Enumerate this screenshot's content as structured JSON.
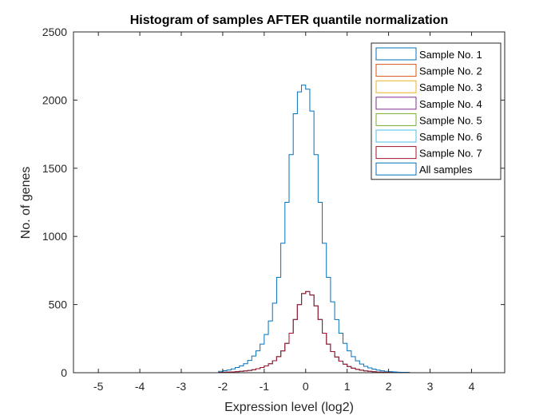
{
  "chart_data": {
    "type": "area",
    "title": "Histogram of samples AFTER quantile normalization",
    "xlabel": "Expression level (log2)",
    "ylabel": "No. of genes",
    "xlim": [
      -5.6,
      4.8
    ],
    "ylim": [
      0,
      2500
    ],
    "xticks": [
      -5,
      -4,
      -3,
      -2,
      -1,
      0,
      1,
      2,
      3,
      4
    ],
    "yticks": [
      0,
      500,
      1000,
      1500,
      2000,
      2500
    ],
    "grid": false,
    "legend_position": "top-right",
    "bin_width": 0.1,
    "bin_centers": [
      -2.05,
      -1.95,
      -1.85,
      -1.75,
      -1.65,
      -1.55,
      -1.45,
      -1.35,
      -1.25,
      -1.15,
      -1.05,
      -0.95,
      -0.85,
      -0.75,
      -0.65,
      -0.55,
      -0.45,
      -0.35,
      -0.25,
      -0.15,
      -0.05,
      0.05,
      0.15,
      0.25,
      0.35,
      0.45,
      0.55,
      0.65,
      0.75,
      0.85,
      0.95,
      1.05,
      1.15,
      1.25,
      1.35,
      1.45,
      1.55,
      1.65,
      1.75,
      1.85,
      1.95,
      2.05,
      2.15,
      2.25,
      2.35,
      2.45
    ],
    "series": [
      {
        "name": "Sample No. 1",
        "color": "#0072bd",
        "values": [
          3,
          4,
          5,
          6,
          8,
          10,
          13,
          17,
          22,
          29,
          38,
          50,
          66,
          88,
          118,
          160,
          215,
          290,
          390,
          500,
          580,
          595,
          570,
          490,
          390,
          290,
          210,
          155,
          115,
          85,
          62,
          45,
          33,
          24,
          18,
          13,
          10,
          7,
          5,
          4,
          3,
          2,
          2,
          1,
          1,
          1
        ]
      },
      {
        "name": "Sample No. 2",
        "color": "#d95319",
        "values": [
          3,
          4,
          5,
          6,
          8,
          10,
          13,
          17,
          22,
          29,
          38,
          50,
          66,
          88,
          118,
          160,
          215,
          290,
          390,
          500,
          580,
          595,
          570,
          490,
          390,
          290,
          210,
          155,
          115,
          85,
          62,
          45,
          33,
          24,
          18,
          13,
          10,
          7,
          5,
          4,
          3,
          2,
          2,
          1,
          1,
          1
        ]
      },
      {
        "name": "Sample No. 3",
        "color": "#edb120",
        "values": [
          3,
          4,
          5,
          6,
          8,
          10,
          13,
          17,
          22,
          29,
          38,
          50,
          66,
          88,
          118,
          160,
          215,
          290,
          390,
          500,
          580,
          595,
          570,
          490,
          390,
          290,
          210,
          155,
          115,
          85,
          62,
          45,
          33,
          24,
          18,
          13,
          10,
          7,
          5,
          4,
          3,
          2,
          2,
          1,
          1,
          1
        ]
      },
      {
        "name": "Sample No. 4",
        "color": "#7e2f8e",
        "values": [
          3,
          4,
          5,
          6,
          8,
          10,
          13,
          17,
          22,
          29,
          38,
          50,
          66,
          88,
          118,
          160,
          215,
          290,
          390,
          500,
          580,
          595,
          570,
          490,
          390,
          290,
          210,
          155,
          115,
          85,
          62,
          45,
          33,
          24,
          18,
          13,
          10,
          7,
          5,
          4,
          3,
          2,
          2,
          1,
          1,
          1
        ]
      },
      {
        "name": "Sample No. 5",
        "color": "#77ac30",
        "values": [
          3,
          4,
          5,
          6,
          8,
          10,
          13,
          17,
          22,
          29,
          38,
          50,
          66,
          88,
          118,
          160,
          215,
          290,
          390,
          500,
          580,
          595,
          570,
          490,
          390,
          290,
          210,
          155,
          115,
          85,
          62,
          45,
          33,
          24,
          18,
          13,
          10,
          7,
          5,
          4,
          3,
          2,
          2,
          1,
          1,
          1
        ]
      },
      {
        "name": "Sample No. 6",
        "color": "#4dbeee",
        "values": [
          3,
          4,
          5,
          6,
          8,
          10,
          13,
          17,
          22,
          29,
          38,
          50,
          66,
          88,
          118,
          160,
          215,
          290,
          390,
          500,
          580,
          595,
          570,
          490,
          390,
          290,
          210,
          155,
          115,
          85,
          62,
          45,
          33,
          24,
          18,
          13,
          10,
          7,
          5,
          4,
          3,
          2,
          2,
          1,
          1,
          1
        ]
      },
      {
        "name": "Sample No. 7",
        "color": "#a2142f",
        "values": [
          3,
          4,
          5,
          6,
          8,
          10,
          13,
          17,
          22,
          29,
          38,
          50,
          66,
          88,
          118,
          160,
          215,
          290,
          390,
          500,
          580,
          595,
          570,
          490,
          390,
          290,
          210,
          155,
          115,
          85,
          62,
          45,
          33,
          24,
          18,
          13,
          10,
          7,
          5,
          4,
          3,
          2,
          2,
          1,
          1,
          1
        ]
      },
      {
        "name": "All samples",
        "color": "#0072bd",
        "values": [
          10,
          15,
          20,
          28,
          38,
          50,
          66,
          90,
          122,
          160,
          210,
          280,
          380,
          510,
          700,
          950,
          1250,
          1600,
          1900,
          2060,
          2110,
          2080,
          1920,
          1600,
          1250,
          950,
          700,
          520,
          390,
          290,
          215,
          160,
          118,
          87,
          64,
          47,
          35,
          26,
          19,
          14,
          10,
          8,
          6,
          4,
          3,
          2
        ]
      }
    ]
  }
}
